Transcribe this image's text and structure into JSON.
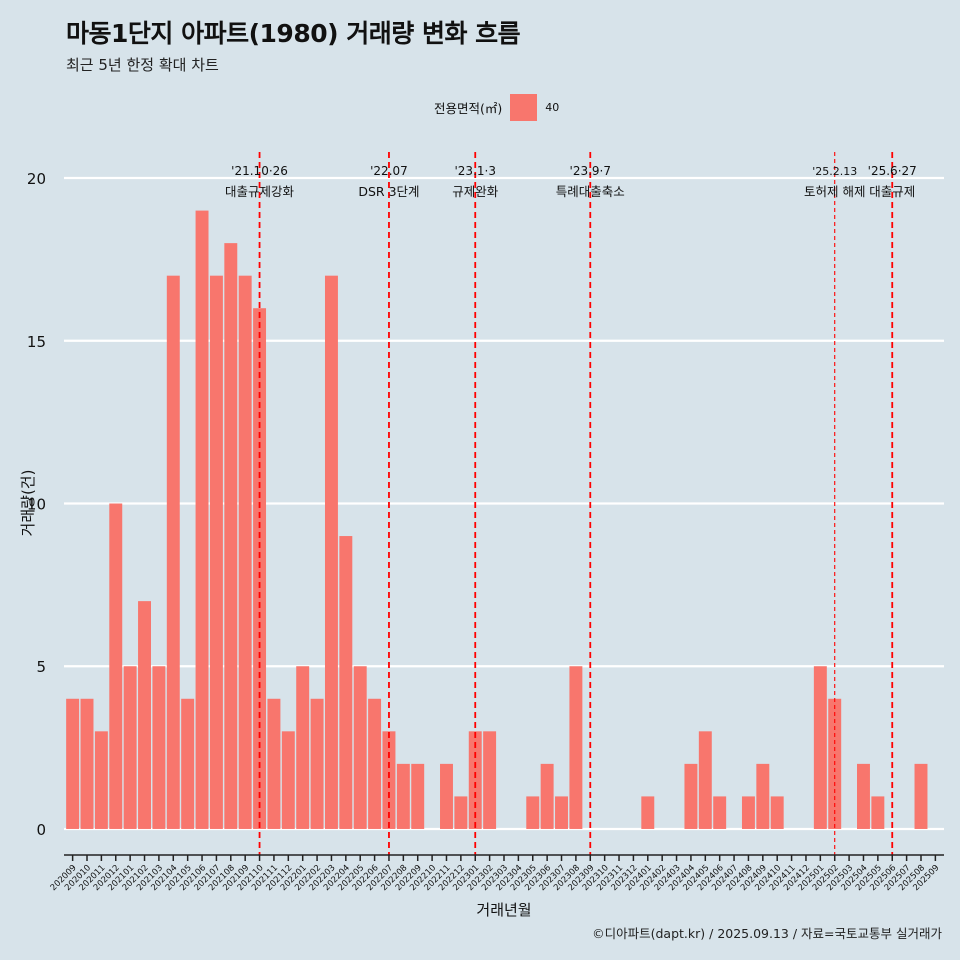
{
  "title": "마동1단지 아파트(1980) 거래량 변화 흐름",
  "subtitle": "최근 5년 한정 확대 차트",
  "caption": "©디아파트(dapt.kr) / 2025.09.13 / 자료=국토교통부 실거래가",
  "legend": {
    "title": "전용면적(㎡)",
    "label": "40",
    "color": "#f8766d"
  },
  "chart_data": {
    "type": "bar",
    "xlabel": "거래년월",
    "ylabel": "거래량(건)",
    "ylim": [
      -0.8,
      20.8
    ],
    "yticks": [
      0,
      5,
      10,
      15,
      20
    ],
    "bar_color": "#f8766d",
    "background": "#d7e3ea",
    "grid": "horizontal, white",
    "categories": [
      "202009",
      "202010",
      "202011",
      "202012",
      "202101",
      "202102",
      "202103",
      "202104",
      "202105",
      "202106",
      "202107",
      "202108",
      "202109",
      "202110",
      "202111",
      "202112",
      "202201",
      "202202",
      "202203",
      "202204",
      "202205",
      "202206",
      "202207",
      "202208",
      "202209",
      "202210",
      "202211",
      "202212",
      "202301",
      "202302",
      "202303",
      "202304",
      "202305",
      "202306",
      "202307",
      "202308",
      "202309",
      "202310",
      "202311",
      "202312",
      "202401",
      "202402",
      "202403",
      "202404",
      "202405",
      "202406",
      "202407",
      "202408",
      "202409",
      "202410",
      "202411",
      "202412",
      "202501",
      "202502",
      "202503",
      "202504",
      "202505",
      "202506",
      "202507",
      "202508",
      "202509"
    ],
    "values": [
      4,
      4,
      3,
      10,
      5,
      7,
      5,
      17,
      4,
      19,
      17,
      18,
      17,
      16,
      4,
      3,
      5,
      4,
      17,
      9,
      5,
      4,
      3,
      2,
      2,
      0,
      2,
      1,
      3,
      3,
      0,
      0,
      1,
      2,
      1,
      5,
      0,
      0,
      0,
      0,
      1,
      0,
      0,
      2,
      3,
      1,
      0,
      1,
      2,
      1,
      0,
      0,
      5,
      4,
      0,
      2,
      1,
      0,
      0,
      2,
      0
    ],
    "annotations": [
      {
        "at": "202110",
        "date": "'21.10·26",
        "label": "대출규제강화",
        "dense": true
      },
      {
        "at": "202207",
        "date": "'22.07",
        "label": "DSR 3단계",
        "dense": true
      },
      {
        "at": "202301",
        "date": "'23.1·3",
        "label": "규제완화",
        "dense": true
      },
      {
        "at": "202309",
        "date": "'23.9·7",
        "label": "특례대출축소",
        "dense": true
      },
      {
        "at": "202502",
        "date": "'25.2.13",
        "label": "토허제 해제",
        "dense": false
      },
      {
        "at": "202506",
        "date": "'25.6·27",
        "label": "대출규제",
        "dense": true
      }
    ]
  }
}
